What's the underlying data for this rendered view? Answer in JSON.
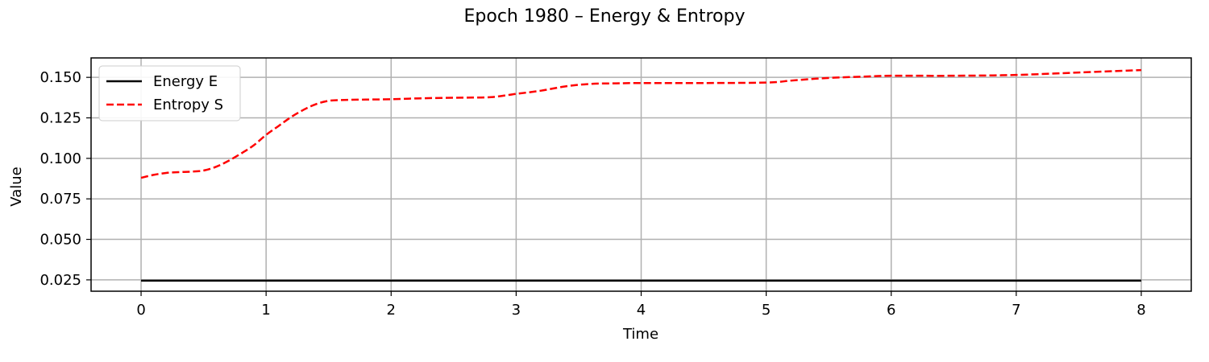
{
  "chart_data": {
    "type": "line",
    "title": "Epoch 1980 – Energy & Entropy",
    "xlabel": "Time",
    "ylabel": "Value",
    "xlim": [
      -0.4,
      8.4
    ],
    "ylim": [
      0.018,
      0.162
    ],
    "xticks": [
      0,
      1,
      2,
      3,
      4,
      5,
      6,
      7,
      8
    ],
    "xtick_labels": [
      "0",
      "1",
      "2",
      "3",
      "4",
      "5",
      "6",
      "7",
      "8"
    ],
    "yticks": [
      0.025,
      0.05,
      0.075,
      0.1,
      0.125,
      0.15
    ],
    "ytick_labels": [
      "0.025",
      "0.050",
      "0.075",
      "0.100",
      "0.125",
      "0.150"
    ],
    "grid": true,
    "legend_position": "upper-left",
    "series": [
      {
        "name": "Energy E",
        "color": "#000000",
        "style": "solid",
        "x": [
          0,
          8
        ],
        "y": [
          0.0245,
          0.0245
        ]
      },
      {
        "name": "Entropy S",
        "color": "#ff0000",
        "style": "dashed",
        "x": [
          0,
          0.1,
          0.2,
          0.3,
          0.4,
          0.5,
          0.6,
          0.7,
          0.8,
          0.9,
          1.0,
          1.1,
          1.2,
          1.3,
          1.4,
          1.5,
          1.6,
          1.8,
          2.0,
          2.2,
          2.4,
          2.6,
          2.8,
          3.0,
          3.2,
          3.4,
          3.6,
          3.8,
          4.0,
          4.5,
          5.0,
          5.2,
          5.4,
          5.6,
          5.8,
          6.0,
          6.5,
          7.0,
          7.5,
          8.0
        ],
        "y": [
          0.088,
          0.0898,
          0.091,
          0.0915,
          0.0918,
          0.0925,
          0.0948,
          0.0985,
          0.103,
          0.108,
          0.1145,
          0.12,
          0.1255,
          0.13,
          0.1335,
          0.1355,
          0.136,
          0.1363,
          0.1365,
          0.137,
          0.1373,
          0.1375,
          0.1378,
          0.1398,
          0.1418,
          0.1445,
          0.146,
          0.1463,
          0.1465,
          0.1465,
          0.1468,
          0.148,
          0.1492,
          0.15,
          0.1505,
          0.151,
          0.151,
          0.1515,
          0.153,
          0.1545
        ]
      }
    ]
  }
}
